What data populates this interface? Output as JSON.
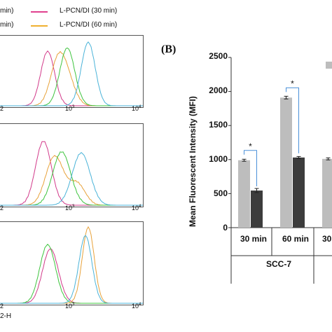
{
  "legend": [
    {
      "label": "min)",
      "color": "#ffffff"
    },
    {
      "label": "L-PCN/DI (30 min)",
      "color": "#e0408f"
    },
    {
      "label": "min)",
      "color": "#ffffff"
    },
    {
      "label": "L-PCN/DI (60 min)",
      "color": "#f0b030"
    }
  ],
  "histograms": {
    "colors": {
      "pink": "#d23a8a",
      "orange": "#e8a23a",
      "green": "#3ec43e",
      "blue": "#4ab3d8"
    },
    "tick_labels": {
      "p1": [
        "2",
        "10",
        "3",
        "10",
        "4"
      ],
      "p2": [
        "2",
        "10",
        "3",
        "10",
        "4"
      ],
      "p3": [
        "2",
        "10",
        "3",
        "10",
        "4"
      ]
    },
    "x_axis_fragment": "2-H"
  },
  "chart_data": {
    "type": "bar",
    "panel_label": "(B)",
    "ylabel": "Mean Fluorescent Intensity (MFI)",
    "ylim": [
      0,
      2500
    ],
    "yticks": [
      "0",
      "500",
      "1000",
      "1500",
      "2000",
      "2500"
    ],
    "categories": [
      "30 min",
      "60 min",
      "30"
    ],
    "group_label": "SCC-7",
    "series": [
      {
        "color": "#bdbdbd",
        "values": [
          990,
          1910,
          1010
        ],
        "errors": [
          15,
          20,
          15
        ]
      },
      {
        "color": "#3c3c3c",
        "values": [
          545,
          1030,
          null
        ],
        "errors": [
          30,
          15,
          null
        ]
      }
    ],
    "significance": [
      "*",
      "*"
    ]
  }
}
